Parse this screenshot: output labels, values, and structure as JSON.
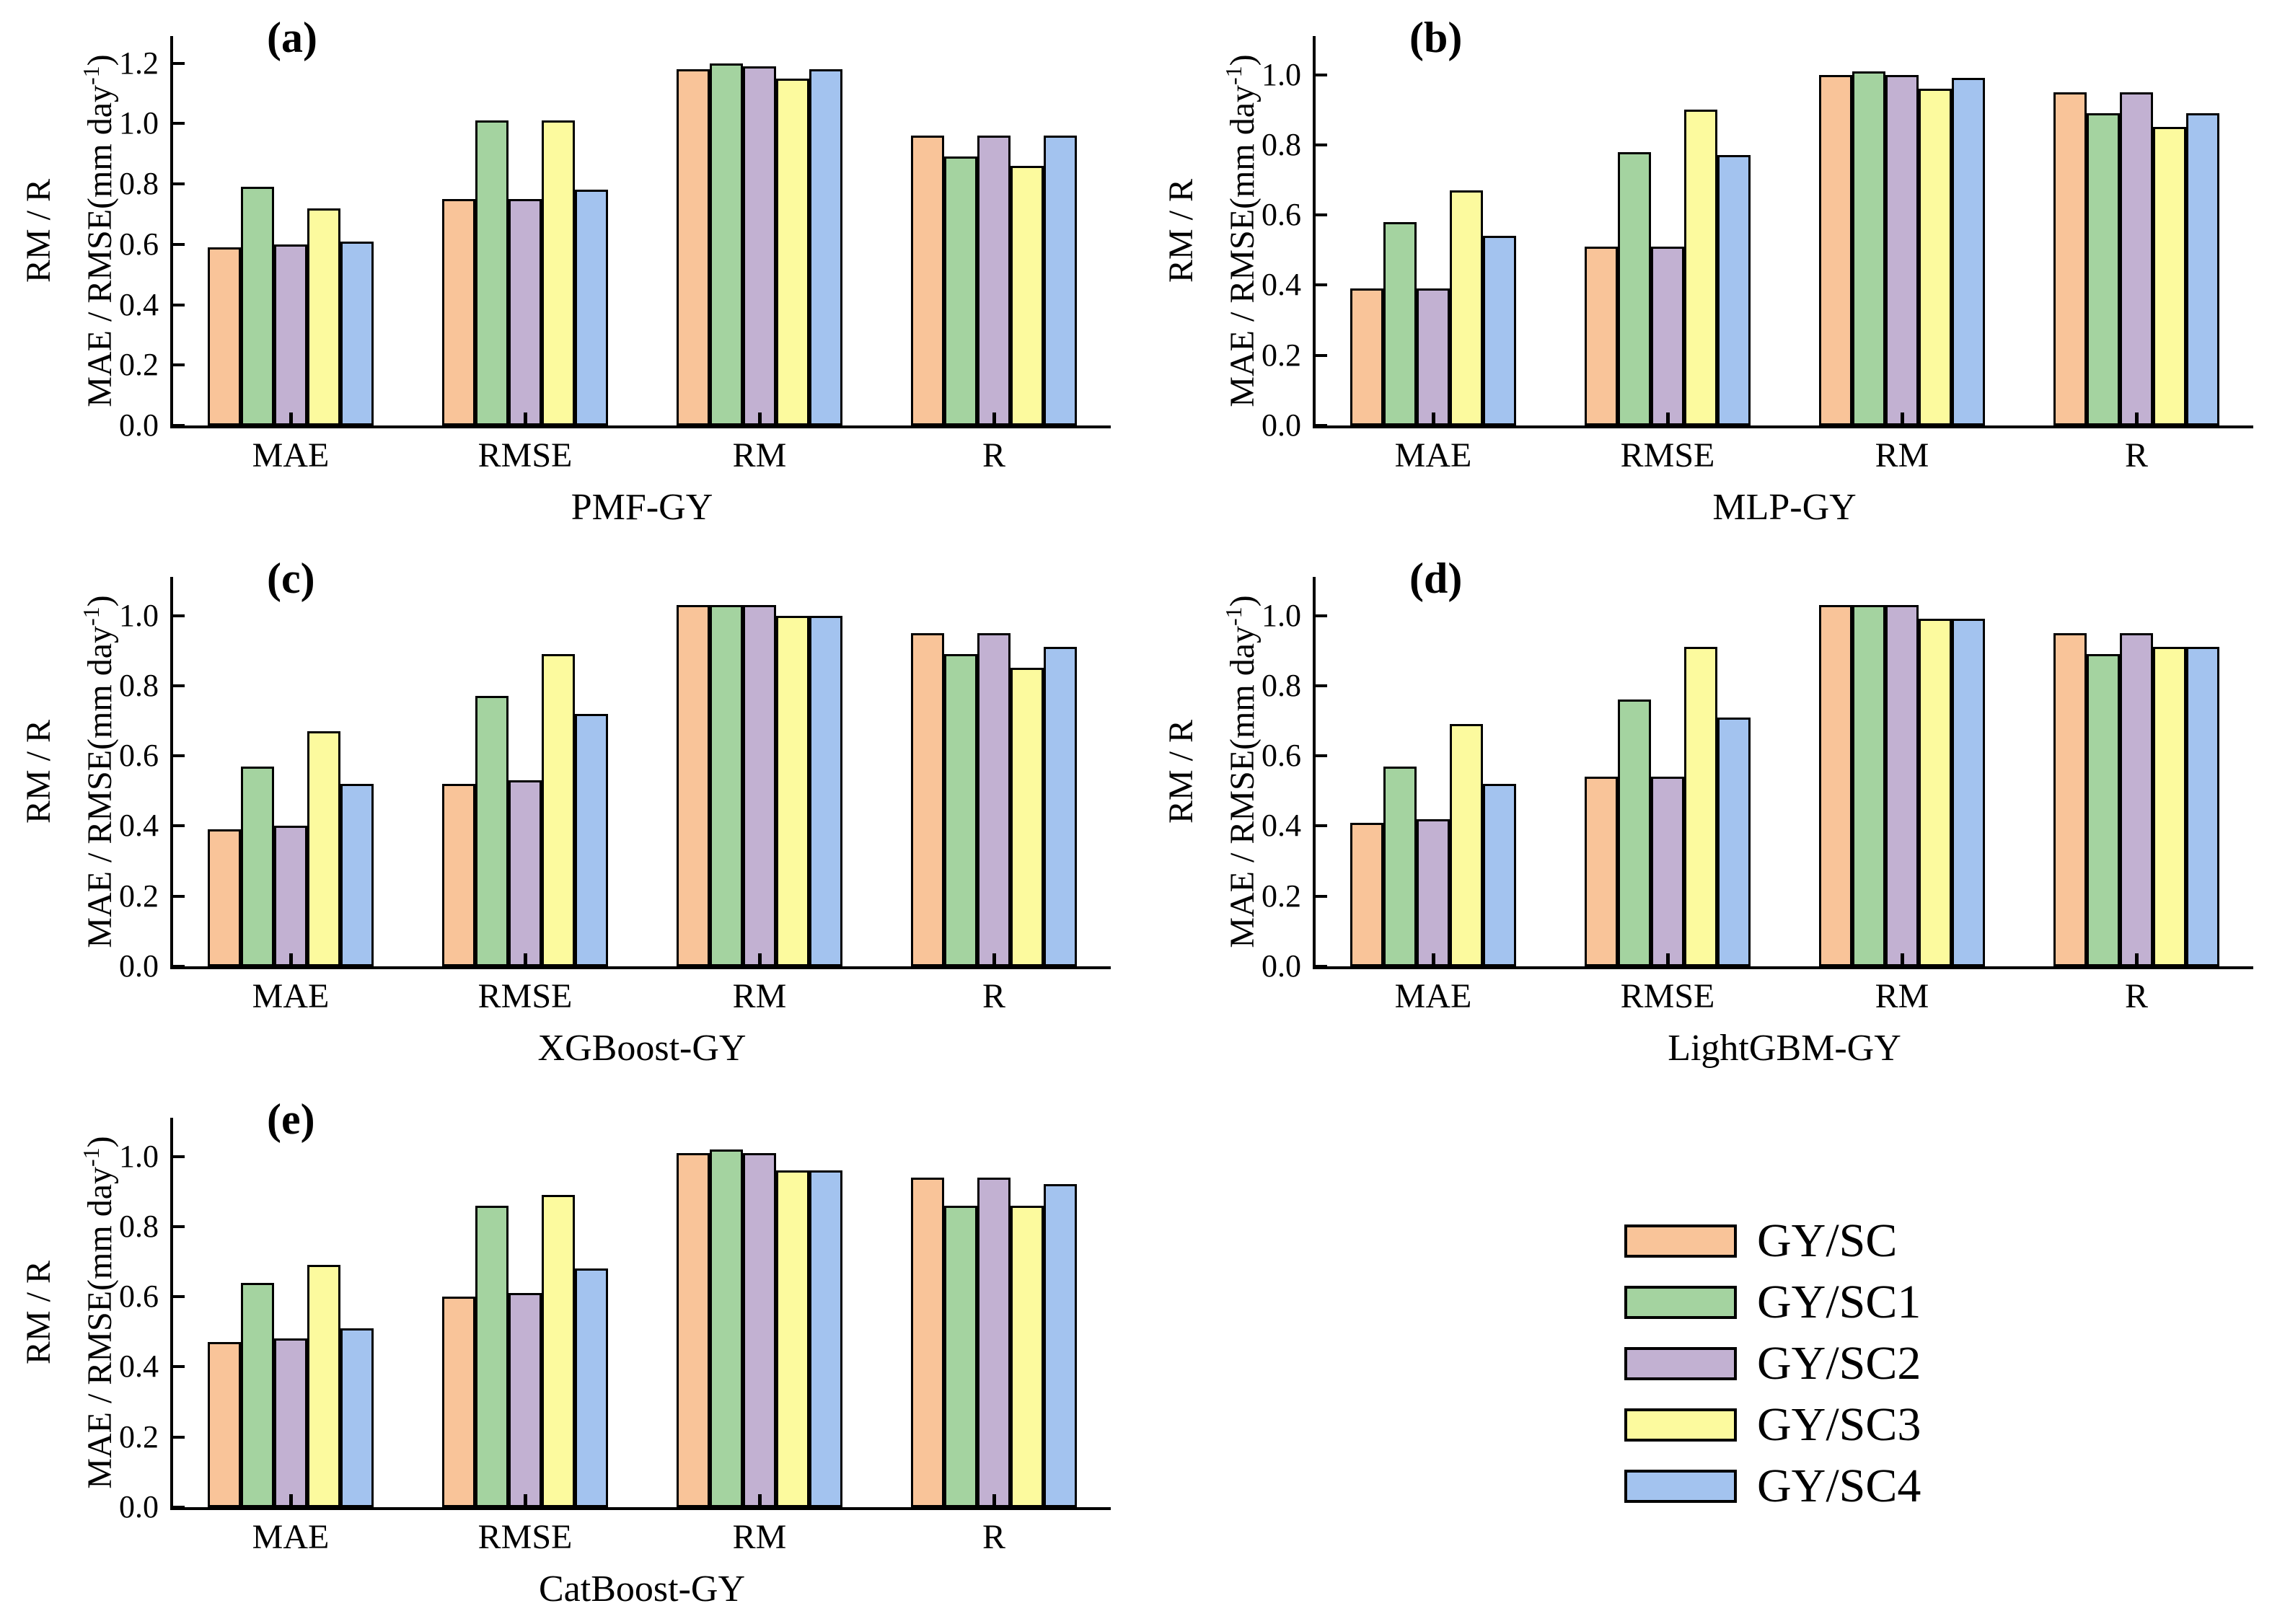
{
  "figure": {
    "background": "#ffffff",
    "y_axis_label_outer": "RM / R",
    "y_axis_label_inner_prefix": "MAE / RMSE(mm day",
    "y_axis_label_inner_sup": "-1",
    "y_axis_label_inner_suffix": ")"
  },
  "legend": {
    "position": "bottom-right",
    "items": [
      {
        "label": "GY/SC",
        "color": "#F9C499"
      },
      {
        "label": "GY/SC1",
        "color": "#A4D3A0"
      },
      {
        "label": "GY/SC2",
        "color": "#C2B1D2"
      },
      {
        "label": "GY/SC3",
        "color": "#FCFA9E"
      },
      {
        "label": "GY/SC4",
        "color": "#A3C3EF"
      }
    ]
  },
  "chart_data": [
    {
      "type": "bar",
      "panel": "(a)",
      "title": "PMF-GY",
      "categories": [
        "MAE",
        "RMSE",
        "RM",
        "R"
      ],
      "yticks": [
        0.0,
        0.2,
        0.4,
        0.6,
        0.8,
        1.0,
        1.2
      ],
      "ylim": [
        0,
        1.29
      ],
      "grid": false,
      "series": [
        {
          "name": "GY/SC",
          "color": "#F9C499",
          "values": [
            0.59,
            0.75,
            1.18,
            0.96
          ]
        },
        {
          "name": "GY/SC1",
          "color": "#A4D3A0",
          "values": [
            0.79,
            1.01,
            1.2,
            0.89
          ]
        },
        {
          "name": "GY/SC2",
          "color": "#C2B1D2",
          "values": [
            0.6,
            0.75,
            1.19,
            0.96
          ]
        },
        {
          "name": "GY/SC3",
          "color": "#FCFA9E",
          "values": [
            0.72,
            1.01,
            1.15,
            0.86
          ]
        },
        {
          "name": "GY/SC4",
          "color": "#A3C3EF",
          "values": [
            0.61,
            0.78,
            1.18,
            0.96
          ]
        }
      ]
    },
    {
      "type": "bar",
      "panel": "(b)",
      "title": "MLP-GY",
      "categories": [
        "MAE",
        "RMSE",
        "RM",
        "R"
      ],
      "yticks": [
        0.0,
        0.2,
        0.4,
        0.6,
        0.8,
        1.0
      ],
      "ylim": [
        0,
        1.11
      ],
      "grid": false,
      "series": [
        {
          "name": "GY/SC",
          "color": "#F9C499",
          "values": [
            0.39,
            0.51,
            1.0,
            0.95
          ]
        },
        {
          "name": "GY/SC1",
          "color": "#A4D3A0",
          "values": [
            0.58,
            0.78,
            1.01,
            0.89
          ]
        },
        {
          "name": "GY/SC2",
          "color": "#C2B1D2",
          "values": [
            0.39,
            0.51,
            1.0,
            0.95
          ]
        },
        {
          "name": "GY/SC3",
          "color": "#FCFA9E",
          "values": [
            0.67,
            0.9,
            0.96,
            0.85
          ]
        },
        {
          "name": "GY/SC4",
          "color": "#A3C3EF",
          "values": [
            0.54,
            0.77,
            0.99,
            0.89
          ]
        }
      ]
    },
    {
      "type": "bar",
      "panel": "(c)",
      "title": "XGBoost-GY",
      "categories": [
        "MAE",
        "RMSE",
        "RM",
        "R"
      ],
      "yticks": [
        0.0,
        0.2,
        0.4,
        0.6,
        0.8,
        1.0
      ],
      "ylim": [
        0,
        1.11
      ],
      "grid": false,
      "series": [
        {
          "name": "GY/SC",
          "color": "#F9C499",
          "values": [
            0.39,
            0.52,
            1.03,
            0.95
          ]
        },
        {
          "name": "GY/SC1",
          "color": "#A4D3A0",
          "values": [
            0.57,
            0.77,
            1.03,
            0.89
          ]
        },
        {
          "name": "GY/SC2",
          "color": "#C2B1D2",
          "values": [
            0.4,
            0.53,
            1.03,
            0.95
          ]
        },
        {
          "name": "GY/SC3",
          "color": "#FCFA9E",
          "values": [
            0.67,
            0.89,
            1.0,
            0.85
          ]
        },
        {
          "name": "GY/SC4",
          "color": "#A3C3EF",
          "values": [
            0.52,
            0.72,
            1.0,
            0.91
          ]
        }
      ]
    },
    {
      "type": "bar",
      "panel": "(d)",
      "title": "LightGBM-GY",
      "categories": [
        "MAE",
        "RMSE",
        "RM",
        "R"
      ],
      "yticks": [
        0.0,
        0.2,
        0.4,
        0.6,
        0.8,
        1.0
      ],
      "ylim": [
        0,
        1.11
      ],
      "grid": false,
      "series": [
        {
          "name": "GY/SC",
          "color": "#F9C499",
          "values": [
            0.41,
            0.54,
            1.03,
            0.95
          ]
        },
        {
          "name": "GY/SC1",
          "color": "#A4D3A0",
          "values": [
            0.57,
            0.76,
            1.03,
            0.89
          ]
        },
        {
          "name": "GY/SC2",
          "color": "#C2B1D2",
          "values": [
            0.42,
            0.54,
            1.03,
            0.95
          ]
        },
        {
          "name": "GY/SC3",
          "color": "#FCFA9E",
          "values": [
            0.69,
            0.91,
            0.99,
            0.91
          ]
        },
        {
          "name": "GY/SC4",
          "color": "#A3C3EF",
          "values": [
            0.52,
            0.71,
            0.99,
            0.91
          ]
        }
      ]
    },
    {
      "type": "bar",
      "panel": "(e)",
      "title": "CatBoost-GY",
      "categories": [
        "MAE",
        "RMSE",
        "RM",
        "R"
      ],
      "yticks": [
        0.0,
        0.2,
        0.4,
        0.6,
        0.8,
        1.0
      ],
      "ylim": [
        0,
        1.11
      ],
      "grid": false,
      "series": [
        {
          "name": "GY/SC",
          "color": "#F9C499",
          "values": [
            0.47,
            0.6,
            1.01,
            0.94
          ]
        },
        {
          "name": "GY/SC1",
          "color": "#A4D3A0",
          "values": [
            0.64,
            0.86,
            1.02,
            0.86
          ]
        },
        {
          "name": "GY/SC2",
          "color": "#C2B1D2",
          "values": [
            0.48,
            0.61,
            1.01,
            0.94
          ]
        },
        {
          "name": "GY/SC3",
          "color": "#FCFA9E",
          "values": [
            0.69,
            0.89,
            0.96,
            0.86
          ]
        },
        {
          "name": "GY/SC4",
          "color": "#A3C3EF",
          "values": [
            0.51,
            0.68,
            0.96,
            0.92
          ]
        }
      ]
    }
  ]
}
